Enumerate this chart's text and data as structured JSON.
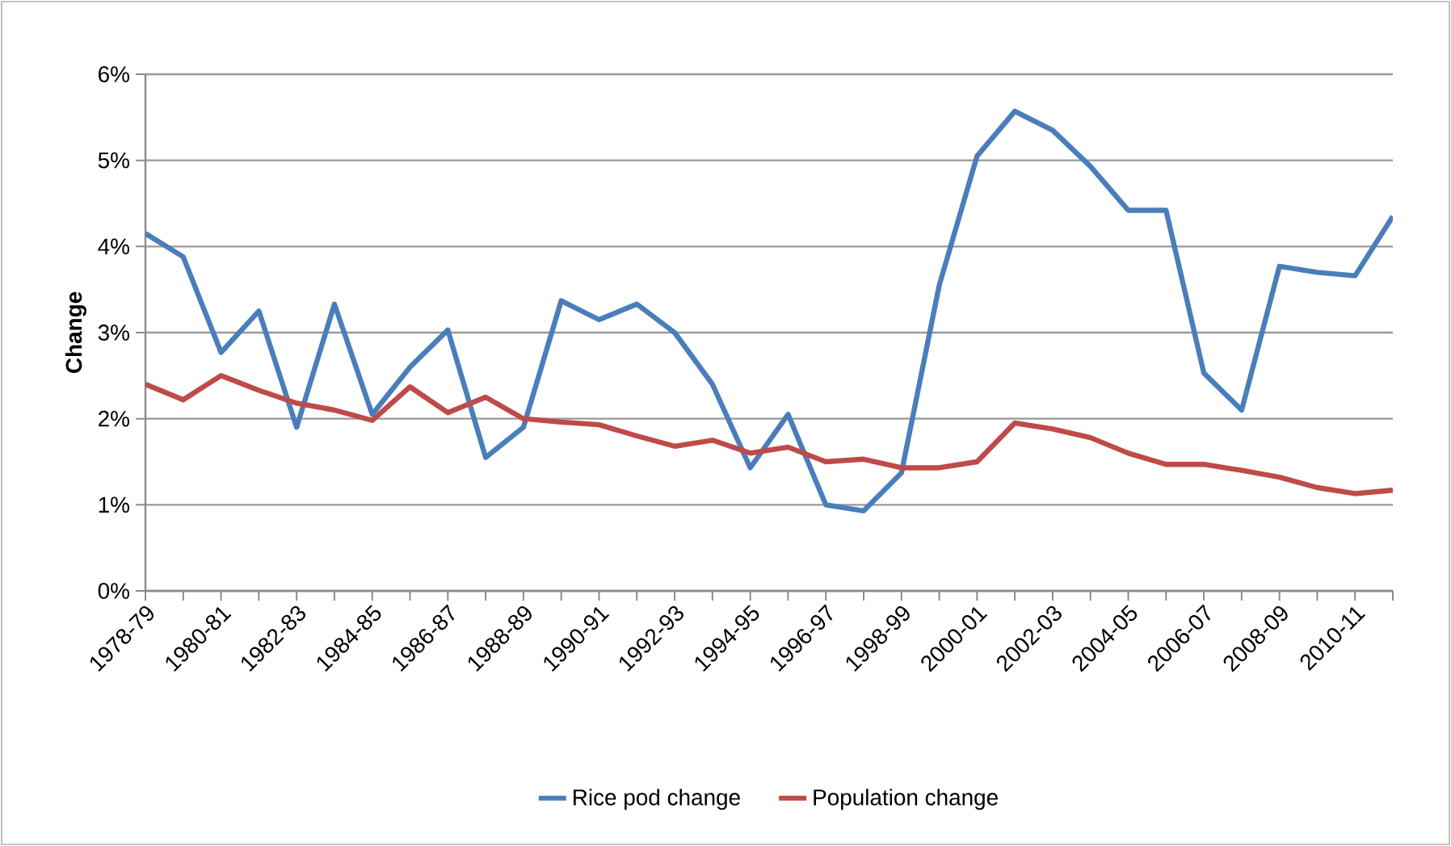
{
  "chart_data": {
    "type": "line",
    "ylabel": "Change",
    "categories": [
      "1978-79",
      null,
      "1980-81",
      null,
      "1982-83",
      null,
      "1984-85",
      null,
      "1986-87",
      null,
      "1988-89",
      null,
      "1990-91",
      null,
      "1992-93",
      null,
      "1994-95",
      null,
      "1996-97",
      null,
      "1998-99",
      null,
      "2000-01",
      null,
      "2002-03",
      null,
      "2004-05",
      null,
      "2006-07",
      null,
      "2008-09",
      null,
      "2010-11",
      null
    ],
    "series": [
      {
        "name": "Rice pod change",
        "color": "#4a7ebb",
        "values": [
          4.15,
          3.88,
          2.77,
          3.25,
          1.9,
          3.33,
          2.05,
          2.6,
          3.03,
          1.55,
          1.9,
          3.37,
          3.15,
          3.33,
          3.0,
          2.4,
          1.43,
          2.05,
          1.0,
          0.93,
          1.37,
          3.55,
          5.05,
          5.57,
          5.35,
          4.93,
          4.42,
          4.42,
          2.53,
          2.1,
          3.77,
          3.7,
          3.66,
          4.35
        ]
      },
      {
        "name": "Population change",
        "color": "#be4b48",
        "values": [
          2.4,
          2.22,
          2.5,
          2.33,
          2.18,
          2.1,
          1.98,
          2.37,
          2.07,
          2.25,
          2.0,
          1.96,
          1.93,
          1.8,
          1.68,
          1.75,
          1.6,
          1.67,
          1.5,
          1.53,
          1.43,
          1.43,
          1.5,
          1.95,
          1.88,
          1.78,
          1.6,
          1.47,
          1.47,
          1.4,
          1.32,
          1.2,
          1.13,
          1.17
        ]
      }
    ],
    "ylim": [
      0,
      6
    ],
    "yticks": [
      {
        "value": 0,
        "label": "0%"
      },
      {
        "value": 1,
        "label": "1%"
      },
      {
        "value": 2,
        "label": "2%"
      },
      {
        "value": 3,
        "label": "3%"
      },
      {
        "value": 4,
        "label": "4%"
      },
      {
        "value": 5,
        "label": "5%"
      },
      {
        "value": 6,
        "label": "6%"
      }
    ],
    "grid": "y",
    "legend": "bottom",
    "marker": "none",
    "line_style": "solid"
  }
}
